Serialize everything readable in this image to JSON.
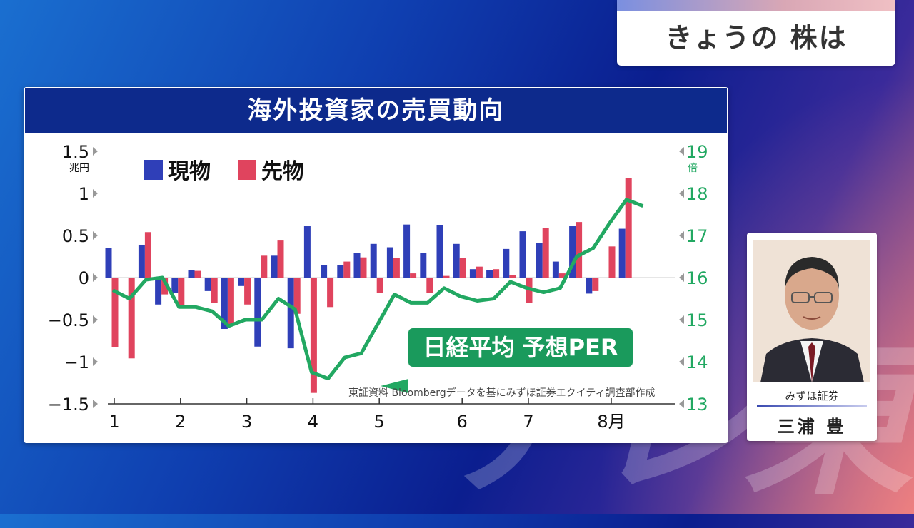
{
  "topic": {
    "title": "きょうの 株は"
  },
  "chart_title": "海外投資家の売買動向",
  "speaker": {
    "company": "みずほ証券",
    "name": "三浦 豊"
  },
  "per_label": "日経平均 予想PER",
  "source": "東証資料 Bloombergデータを基にみずほ証券エクイティ調査部作成",
  "colors": {
    "genbutsu": "#2f3fb8",
    "sakimono": "#e0445e",
    "per": "#22a862",
    "header": "#0d2a8c"
  },
  "chart_data": {
    "type": "bar",
    "title": "海外投資家の売買動向",
    "left_axis": {
      "unit": "兆円",
      "ticks": [
        "1.5",
        "1",
        "0.5",
        "0",
        "−0.5",
        "−1",
        "−1.5"
      ],
      "ylim": [
        -1.5,
        1.5
      ]
    },
    "right_axis": {
      "unit": "倍",
      "ticks": [
        "19",
        "18",
        "17",
        "16",
        "15",
        "14",
        "13"
      ],
      "ylim": [
        13,
        19
      ]
    },
    "x_ticks": [
      {
        "label": "1",
        "week": 0
      },
      {
        "label": "2",
        "week": 4
      },
      {
        "label": "3",
        "week": 8
      },
      {
        "label": "4",
        "week": 12
      },
      {
        "label": "5",
        "week": 16
      },
      {
        "label": "6",
        "week": 21
      },
      {
        "label": "7",
        "week": 25
      },
      {
        "label": "8月",
        "week": 30
      }
    ],
    "legend": [
      "現物",
      "先物"
    ],
    "series": [
      {
        "name": "現物",
        "values": [
          0.35,
          0,
          0.39,
          -0.32,
          -0.18,
          0.09,
          -0.16,
          -0.61,
          -0.1,
          -0.82,
          0.26,
          -0.84,
          0.61,
          0.15,
          0.15,
          0.29,
          0.4,
          0.36,
          0.63,
          0.29,
          0.62,
          0.4,
          0.1,
          0.09,
          0.34,
          0.55,
          0.41,
          0.19,
          0.61,
          -0.19,
          0,
          0.58
        ]
      },
      {
        "name": "先物",
        "values": [
          -0.83,
          -0.96,
          0.54,
          -0.2,
          -0.33,
          0.08,
          -0.3,
          -0.56,
          -0.32,
          0.26,
          0.44,
          -0.43,
          -1.37,
          -0.35,
          0.19,
          0.24,
          -0.18,
          0.23,
          0.05,
          -0.18,
          0.02,
          0.23,
          0.13,
          0.1,
          0.03,
          -0.3,
          0.59,
          0.05,
          0.66,
          -0.16,
          0.37,
          1.18
        ]
      },
      {
        "name": "日経平均 予想PER",
        "values": [
          15.7,
          15.5,
          15.95,
          16.0,
          15.3,
          15.3,
          15.2,
          14.85,
          15.0,
          15.0,
          15.5,
          15.25,
          13.75,
          13.6,
          14.1,
          14.2,
          14.9,
          15.6,
          15.4,
          15.4,
          15.75,
          15.55,
          15.45,
          15.5,
          15.9,
          15.75,
          15.65,
          15.75,
          16.5,
          16.7,
          17.3,
          17.85,
          17.7
        ]
      }
    ]
  }
}
